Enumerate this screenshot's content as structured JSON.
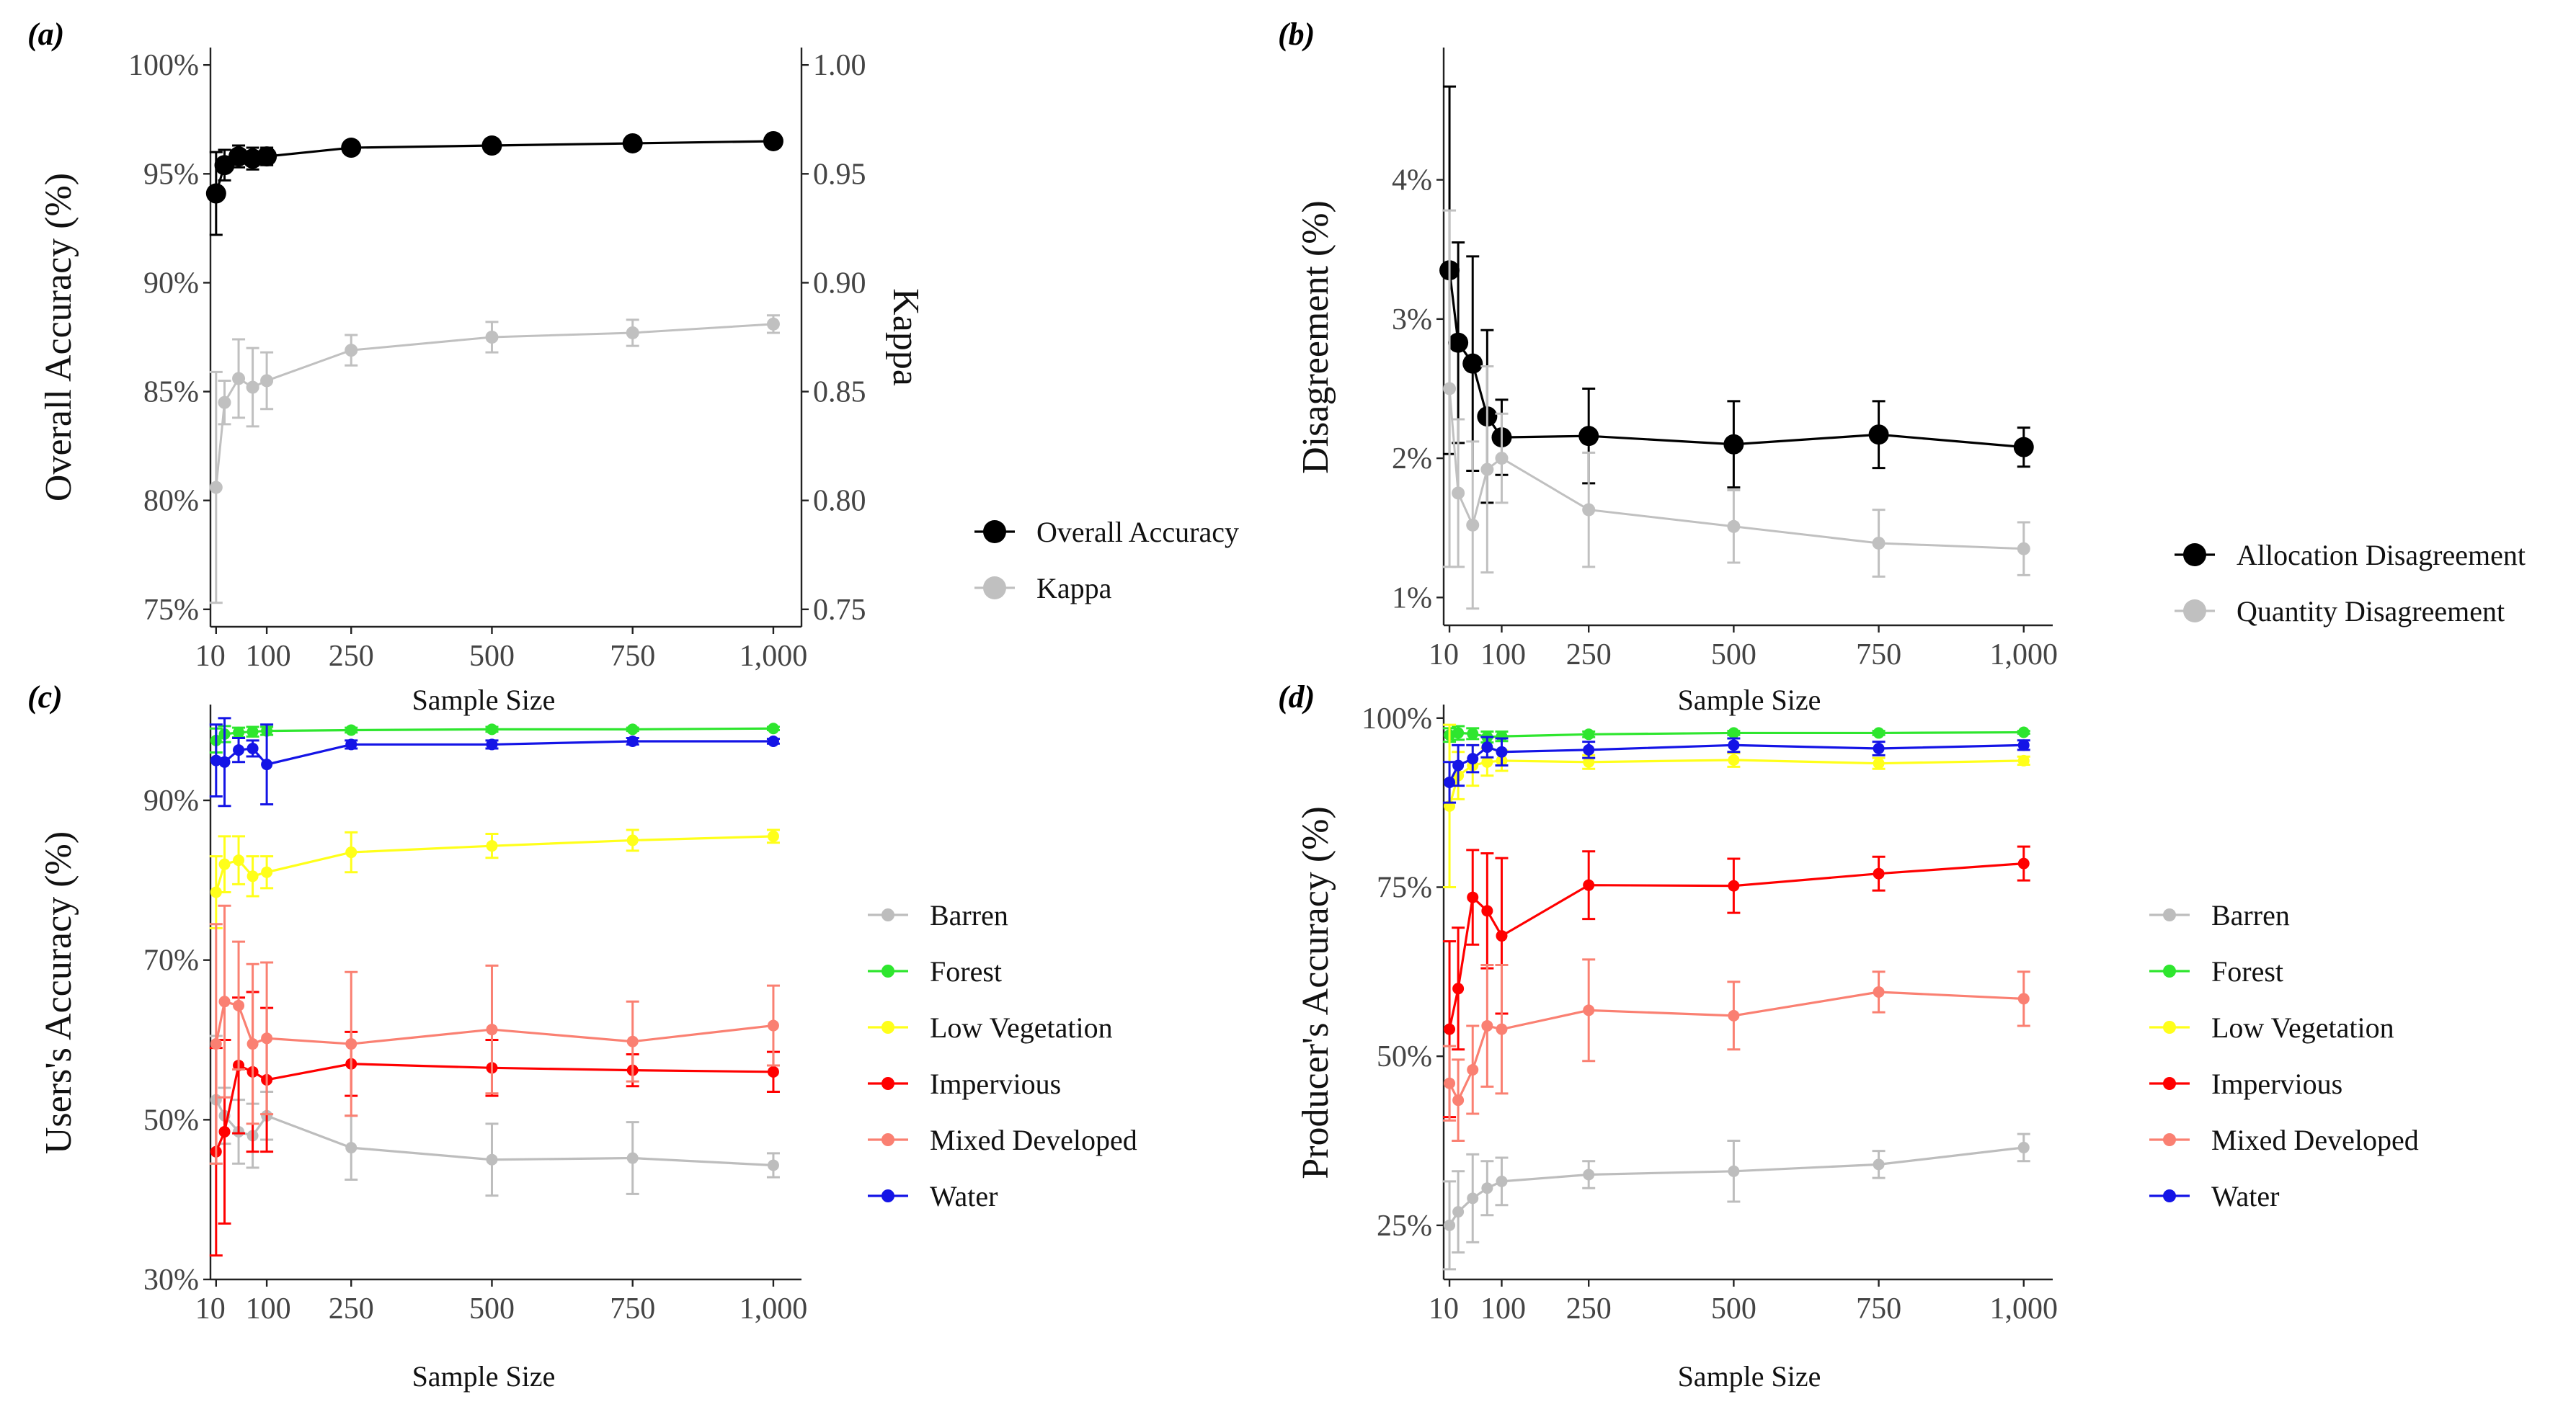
{
  "figure": {
    "panel_labels": [
      "(a)",
      "(b)",
      "(c)",
      "(d)"
    ],
    "x_tick_labels": [
      "10",
      "100",
      "250",
      "500",
      "750",
      "1,000"
    ]
  },
  "chart_data": [
    {
      "id": "a",
      "type": "line",
      "panel_label": "(a)",
      "xlabel": "Sample Size",
      "ylabel": "Overall Accuracy (%)",
      "y2label": "Kappa",
      "x": [
        10,
        25,
        50,
        75,
        100,
        250,
        500,
        750,
        1000
      ],
      "xlim": [
        0,
        1050
      ],
      "xticks": [
        10,
        100,
        250,
        500,
        750,
        1000
      ],
      "xtick_labels": [
        "10",
        "100",
        "250",
        "500",
        "750",
        "1,000"
      ],
      "ylim": [
        74.2,
        100.8
      ],
      "yticks": [
        75,
        80,
        85,
        90,
        95,
        100
      ],
      "ytick_labels": [
        "75%",
        "80%",
        "85%",
        "90%",
        "95%",
        "100%"
      ],
      "y2lim": [
        0.742,
        1.008
      ],
      "y2ticks": [
        0.75,
        0.8,
        0.85,
        0.9,
        0.95,
        1.0
      ],
      "y2tick_labels": [
        "0.75",
        "0.80",
        "0.85",
        "0.90",
        "0.95",
        "1.00"
      ],
      "series": [
        {
          "name": "Overall Accuracy",
          "color": "#000000",
          "axis": "left",
          "marker": "large",
          "values": [
            94.1,
            95.4,
            95.8,
            95.7,
            95.8,
            96.2,
            96.3,
            96.4,
            96.5
          ],
          "errors": [
            1.9,
            0.7,
            0.5,
            0.5,
            0.4,
            0.2,
            0.2,
            0.2,
            0.2
          ]
        },
        {
          "name": "Kappa",
          "color": "#c0c0c0",
          "axis": "right",
          "marker": "small",
          "values": [
            0.806,
            0.845,
            0.856,
            0.852,
            0.855,
            0.869,
            0.875,
            0.877,
            0.881
          ],
          "errors": [
            0.053,
            0.01,
            0.018,
            0.018,
            0.013,
            0.007,
            0.007,
            0.006,
            0.004
          ]
        }
      ],
      "legend_position": "right"
    },
    {
      "id": "b",
      "type": "line",
      "panel_label": "(b)",
      "xlabel": "Sample Size",
      "ylabel": "Disagreement (%)",
      "x": [
        10,
        25,
        50,
        75,
        100,
        250,
        500,
        750,
        1000
      ],
      "xlim": [
        0,
        1050
      ],
      "xticks": [
        10,
        100,
        250,
        500,
        750,
        1000
      ],
      "xtick_labels": [
        "10",
        "100",
        "250",
        "500",
        "750",
        "1,000"
      ],
      "ylim": [
        0.8,
        4.95
      ],
      "yticks": [
        1,
        2,
        3,
        4
      ],
      "ytick_labels": [
        "1%",
        "2%",
        "3%",
        "4%"
      ],
      "series": [
        {
          "name": "Allocation Disagreement",
          "color": "#000000",
          "marker": "large",
          "values": [
            3.35,
            2.83,
            2.68,
            2.3,
            2.15,
            2.16,
            2.1,
            2.17,
            2.08
          ],
          "errors": [
            1.32,
            0.72,
            0.77,
            0.62,
            0.27,
            0.34,
            0.31,
            0.24,
            0.14
          ]
        },
        {
          "name": "Quantity Disagreement",
          "color": "#c0c0c0",
          "marker": "small",
          "values": [
            2.5,
            1.75,
            1.52,
            1.92,
            2.0,
            1.63,
            1.51,
            1.39,
            1.35
          ],
          "errors": [
            1.28,
            0.53,
            0.6,
            0.74,
            0.32,
            0.41,
            0.26,
            0.24,
            0.19
          ]
        }
      ],
      "legend_position": "right"
    },
    {
      "id": "c",
      "type": "line",
      "panel_label": "(c)",
      "xlabel": "Sample Size",
      "ylabel": "Users's Accuracy (%)",
      "x": [
        10,
        25,
        50,
        75,
        100,
        250,
        500,
        750,
        1000
      ],
      "xlim": [
        0,
        1050
      ],
      "xticks": [
        10,
        100,
        250,
        500,
        750,
        1000
      ],
      "xtick_labels": [
        "10",
        "100",
        "250",
        "500",
        "750",
        "1,000"
      ],
      "ylim": [
        30,
        102
      ],
      "yticks": [
        30,
        50,
        70,
        90
      ],
      "ytick_labels": [
        "30%",
        "50%",
        "70%",
        "90%"
      ],
      "series": [
        {
          "name": "Barren",
          "color": "#bdbdbd",
          "values": [
            52.5,
            50.5,
            48.5,
            48.0,
            50.5,
            46.5,
            45.0,
            45.2,
            44.3
          ],
          "errors": [
            8.0,
            3.5,
            4.0,
            4.0,
            3.0,
            4.0,
            4.5,
            4.5,
            1.5
          ]
        },
        {
          "name": "Forest",
          "color": "#2ee62e",
          "values": [
            97.5,
            98.3,
            98.5,
            98.6,
            98.7,
            98.8,
            98.9,
            98.9,
            99.0
          ],
          "errors": [
            1.5,
            1.0,
            0.6,
            0.6,
            0.5,
            0.3,
            0.3,
            0.2,
            0.2
          ]
        },
        {
          "name": "Low Vegetation",
          "color": "#ffff1a",
          "values": [
            78.5,
            82.0,
            82.5,
            80.5,
            81.0,
            83.5,
            84.3,
            85.0,
            85.5
          ],
          "errors": [
            4.5,
            3.5,
            3.0,
            2.5,
            2.0,
            2.5,
            1.5,
            1.3,
            0.8
          ]
        },
        {
          "name": "Impervious",
          "color": "#ff0000",
          "values": [
            46.0,
            48.5,
            56.8,
            56.0,
            55.0,
            57.0,
            56.5,
            56.2,
            56.0
          ],
          "errors": [
            13.0,
            11.5,
            8.5,
            10.0,
            9.0,
            4.0,
            3.5,
            2.0,
            2.5
          ]
        },
        {
          "name": "Mixed Developed",
          "color": "#fa8072",
          "values": [
            59.5,
            64.8,
            64.3,
            59.5,
            60.2,
            59.5,
            61.3,
            59.8,
            61.8
          ],
          "errors": [
            15.0,
            12.0,
            8.0,
            10.0,
            9.5,
            9.0,
            8.0,
            5.0,
            5.0
          ]
        },
        {
          "name": "Water",
          "color": "#1414e6",
          "values": [
            95.0,
            94.8,
            96.3,
            96.5,
            94.5,
            97.0,
            97.0,
            97.4,
            97.4
          ],
          "errors": [
            4.5,
            5.5,
            1.5,
            1.0,
            5.0,
            0.5,
            0.5,
            0.4,
            0.3
          ]
        }
      ],
      "legend_position": "right"
    },
    {
      "id": "d",
      "type": "line",
      "panel_label": "(d)",
      "xlabel": "Sample Size",
      "ylabel": "Producer's Accuracy (%)",
      "x": [
        10,
        25,
        50,
        75,
        100,
        250,
        500,
        750,
        1000
      ],
      "xlim": [
        0,
        1050
      ],
      "xticks": [
        10,
        100,
        250,
        500,
        750,
        1000
      ],
      "xtick_labels": [
        "10",
        "100",
        "250",
        "500",
        "750",
        "1,000"
      ],
      "ylim": [
        17,
        102
      ],
      "yticks": [
        25,
        50,
        75,
        100
      ],
      "ytick_labels": [
        "25%",
        "50%",
        "75%",
        "100%"
      ],
      "series": [
        {
          "name": "Barren",
          "color": "#bdbdbd",
          "values": [
            25.0,
            27.0,
            29.0,
            30.5,
            31.5,
            32.5,
            33.0,
            34.0,
            36.5
          ],
          "errors": [
            6.5,
            6.0,
            6.5,
            4.0,
            3.5,
            2.0,
            4.5,
            2.0,
            2.0
          ]
        },
        {
          "name": "Forest",
          "color": "#2ee62e",
          "values": [
            97.5,
            97.8,
            97.7,
            97.2,
            97.3,
            97.6,
            97.8,
            97.8,
            97.9
          ],
          "errors": [
            1.0,
            1.0,
            0.8,
            0.8,
            0.7,
            0.4,
            0.3,
            0.3,
            0.2
          ]
        },
        {
          "name": "Low Vegetation",
          "color": "#ffff1a",
          "values": [
            87.0,
            91.5,
            93.0,
            93.5,
            93.7,
            93.5,
            93.8,
            93.3,
            93.7
          ],
          "errors": [
            12.0,
            3.5,
            3.0,
            2.0,
            1.5,
            1.0,
            1.0,
            0.8,
            0.6
          ]
        },
        {
          "name": "Impervious",
          "color": "#ff0000",
          "values": [
            54.0,
            60.0,
            73.5,
            71.5,
            67.8,
            75.3,
            75.2,
            77.0,
            78.5
          ],
          "errors": [
            13.0,
            9.0,
            7.0,
            8.5,
            11.5,
            5.0,
            4.0,
            2.5,
            2.5
          ]
        },
        {
          "name": "Mixed Developed",
          "color": "#fa8072",
          "values": [
            46.0,
            43.5,
            48.0,
            54.5,
            54.0,
            56.8,
            56.0,
            59.5,
            58.5
          ],
          "errors": [
            5.5,
            6.0,
            6.5,
            9.0,
            9.5,
            7.5,
            5.0,
            3.0,
            4.0
          ]
        },
        {
          "name": "Water",
          "color": "#1414e6",
          "values": [
            90.5,
            93.0,
            94.0,
            95.7,
            95.0,
            95.3,
            96.0,
            95.5,
            96.0
          ],
          "errors": [
            3.0,
            3.0,
            2.0,
            1.5,
            2.0,
            1.2,
            1.0,
            1.0,
            0.7
          ]
        }
      ],
      "legend_position": "right"
    }
  ]
}
